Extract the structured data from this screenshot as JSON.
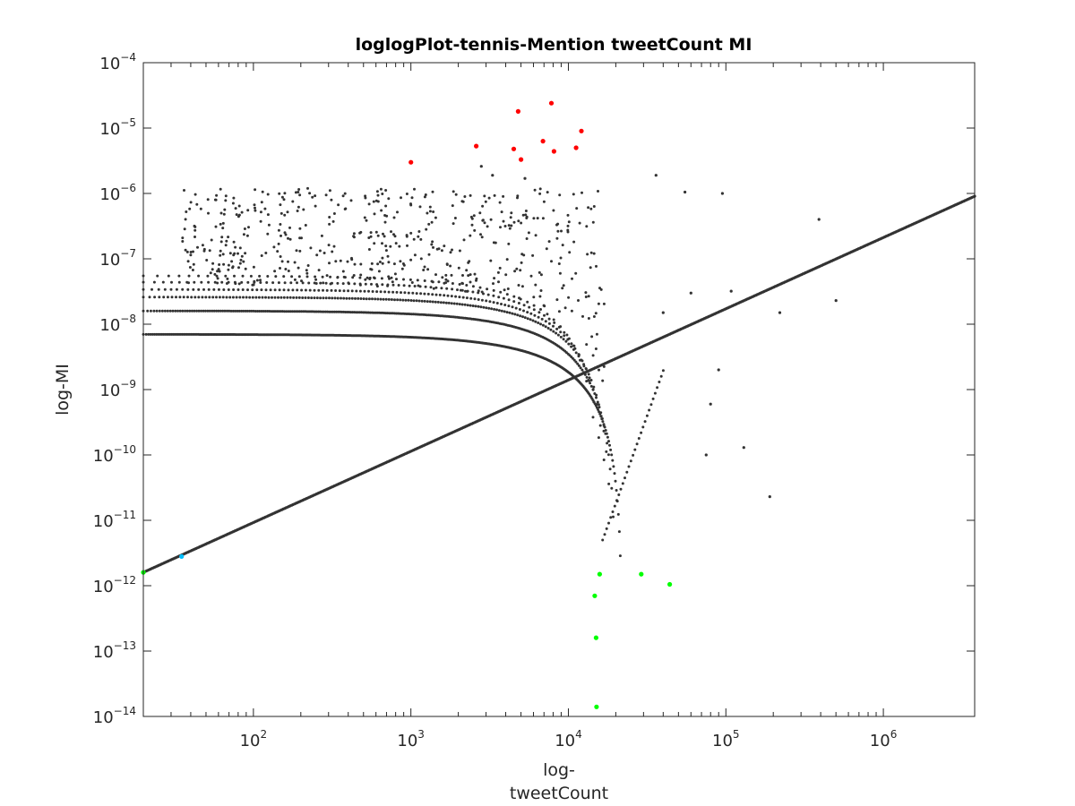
{
  "chart_data": {
    "type": "scatter",
    "title": "loglogPlot-tennis-Mention tweetCount MI",
    "xlabel_lines": [
      "log-",
      "tweetCount"
    ],
    "ylabel": "log-MI",
    "x_scale": "log",
    "y_scale": "log",
    "xlim": [
      20,
      3800000
    ],
    "ylim": [
      1e-14,
      0.0001
    ],
    "grid": false,
    "legend": "none",
    "x_ticks": [
      {
        "value": 100,
        "base": "10",
        "exp": "2"
      },
      {
        "value": 1000,
        "base": "10",
        "exp": "3"
      },
      {
        "value": 10000,
        "base": "10",
        "exp": "4"
      },
      {
        "value": 100000,
        "base": "10",
        "exp": "5"
      },
      {
        "value": 1000000,
        "base": "10",
        "exp": "6"
      }
    ],
    "y_ticks": [
      {
        "value": 1e-14,
        "base": "10",
        "exp": "−14"
      },
      {
        "value": 1e-13,
        "base": "10",
        "exp": "−13"
      },
      {
        "value": 1e-12,
        "base": "10",
        "exp": "−12"
      },
      {
        "value": 1e-11,
        "base": "10",
        "exp": "−11"
      },
      {
        "value": 1e-10,
        "base": "10",
        "exp": "−10"
      },
      {
        "value": 1e-09,
        "base": "10",
        "exp": "−9"
      },
      {
        "value": 1e-08,
        "base": "10",
        "exp": "−8"
      },
      {
        "value": 1e-07,
        "base": "10",
        "exp": "−7"
      },
      {
        "value": 1e-06,
        "base": "10",
        "exp": "−6"
      },
      {
        "value": 1e-05,
        "base": "10",
        "exp": "−5"
      },
      {
        "value": 0.0001,
        "base": "10",
        "exp": "−4"
      }
    ],
    "colors": {
      "default": "#333333",
      "high": "#ff0000",
      "low": "#00ff00",
      "start": "#00bfff"
    },
    "series": [
      {
        "color_key": "high",
        "points": [
          [
            1000,
            3e-06
          ],
          [
            2600,
            5.3e-06
          ],
          [
            4500,
            4.8e-06
          ],
          [
            4800,
            1.8e-05
          ],
          [
            5000,
            3.3e-06
          ],
          [
            6900,
            6.3e-06
          ],
          [
            7800,
            2.4e-05
          ],
          [
            8100,
            4.4e-06
          ],
          [
            11200,
            5e-06
          ],
          [
            12100,
            9e-06
          ]
        ]
      },
      {
        "color_key": "low",
        "points": [
          [
            20,
            1.6e-12
          ],
          [
            14700,
            7e-13
          ],
          [
            15000,
            1.6e-13
          ],
          [
            15100,
            1.4e-14
          ],
          [
            15800,
            1.5e-12
          ],
          [
            29000,
            1.5e-12
          ],
          [
            44000,
            1.05e-12
          ]
        ]
      },
      {
        "color_key": "start",
        "points": [
          [
            35,
            2.8e-12
          ]
        ]
      },
      {
        "color_key": "default",
        "points": [
          [
            2800,
            2.6e-06
          ],
          [
            3300,
            1.9e-06
          ],
          [
            5300,
            1.7e-06
          ],
          [
            36000,
            1.9e-06
          ],
          [
            55000,
            1.05e-06
          ],
          [
            95000,
            1e-06
          ],
          [
            390000,
            4e-07
          ],
          [
            190000,
            2.3e-11
          ],
          [
            130000,
            1.3e-10
          ],
          [
            108000,
            3.2e-08
          ],
          [
            500000,
            2.3e-08
          ],
          [
            80000,
            6e-10
          ],
          [
            220000,
            1.5e-08
          ],
          [
            40000,
            1.5e-08
          ],
          [
            60000,
            3e-08
          ],
          [
            75000,
            1e-10
          ],
          [
            90000,
            2e-09
          ]
        ]
      }
    ]
  }
}
